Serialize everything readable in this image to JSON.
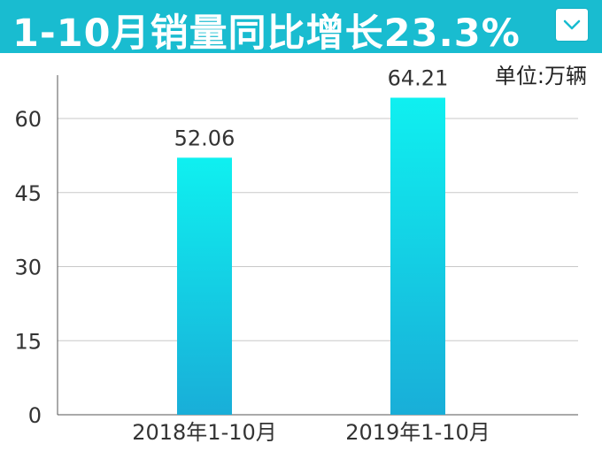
{
  "title": "1-10月销量同比增长23.3%",
  "unit": "单位:万辆",
  "icons": {
    "dropdown": "chevron-down-icon"
  },
  "colors": {
    "title_bg": "#19bcd0",
    "bar_top": "#0ff0f0",
    "bar_bottom": "#19aed8",
    "grid": "#c8c8c8"
  },
  "chart_data": {
    "type": "bar",
    "categories": [
      "2018年1-10月",
      "2019年1-10月"
    ],
    "values": [
      52.06,
      64.21
    ],
    "value_labels": [
      "52.06",
      "64.21"
    ],
    "yticks": [
      0,
      15,
      30,
      45,
      60
    ],
    "ylim": [
      0,
      67.5
    ],
    "grid": true,
    "legend": "none"
  }
}
